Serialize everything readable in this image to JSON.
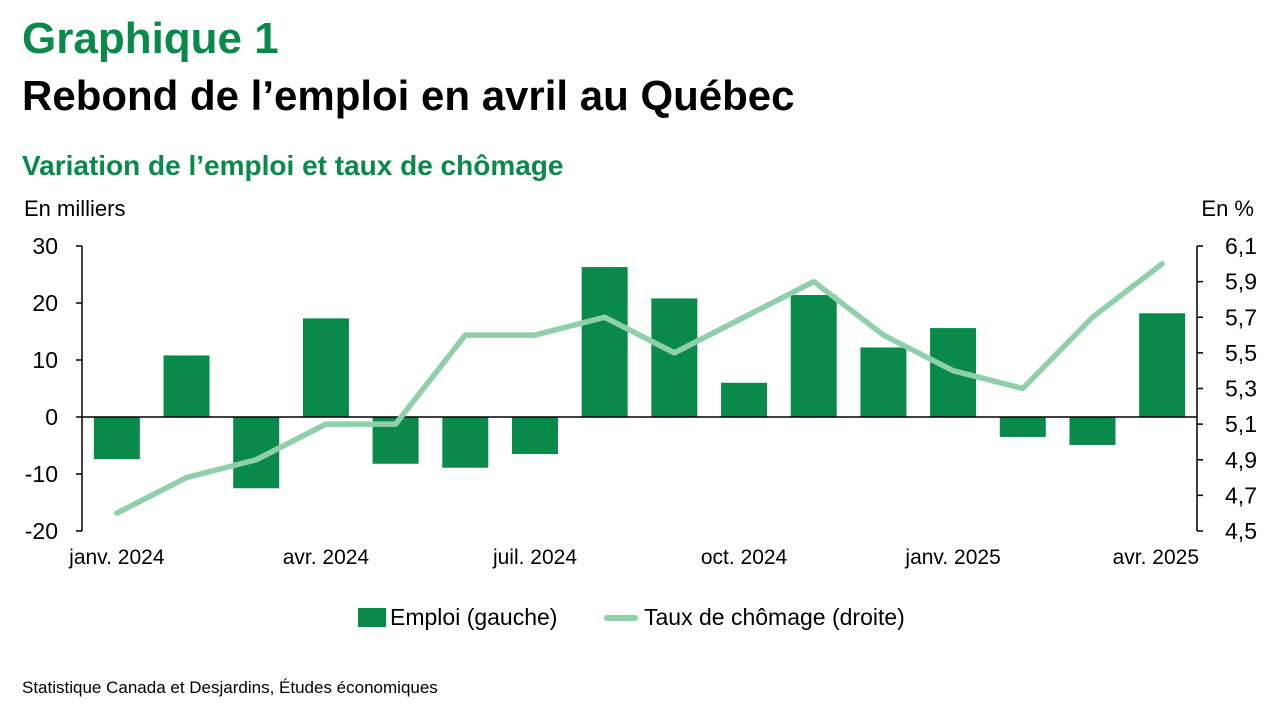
{
  "header": {
    "figure_label": "Graphique 1",
    "title": "Rebond de l’emploi en avril au Québec",
    "subtitle": "Variation de l’emploi et taux de chômage"
  },
  "source": "Statistique Canada et Desjardins, Études économiques",
  "colors": {
    "bar": "#0a8a4a",
    "line": "#8fd0ab",
    "accent": "#0a8a4a"
  },
  "chart_data": {
    "type": "bar",
    "left_axis_label": "En milliers",
    "right_axis_label": "En %",
    "x_tick_labels": [
      "janv. 2024",
      "avr. 2024",
      "juil. 2024",
      "oct. 2024",
      "janv. 2025",
      "avr. 2025"
    ],
    "x_tick_indices": [
      0,
      3,
      6,
      9,
      12,
      15
    ],
    "months": [
      "janv. 2024",
      "févr. 2024",
      "mars 2024",
      "avr. 2024",
      "mai 2024",
      "juin 2024",
      "juil. 2024",
      "août 2024",
      "sept. 2024",
      "oct. 2024",
      "nov. 2024",
      "déc. 2024",
      "janv. 2025",
      "févr. 2025",
      "mars 2025",
      "avr. 2025"
    ],
    "ylim_left": [
      -20,
      30
    ],
    "yticks_left": [
      -20,
      -10,
      0,
      10,
      20,
      30
    ],
    "ylim_right": [
      4.5,
      6.1
    ],
    "yticks_right": [
      "4,5",
      "4,7",
      "4,9",
      "5,1",
      "5,3",
      "5,5",
      "5,7",
      "5,9",
      "6,1"
    ],
    "series": [
      {
        "name": "Emploi (gauche)",
        "type": "bar",
        "axis": "left",
        "values": [
          -7.4,
          10.8,
          -12.5,
          17.3,
          -8.2,
          -8.9,
          -6.5,
          26.3,
          20.8,
          6.0,
          21.4,
          12.2,
          15.6,
          -3.5,
          -4.9,
          18.2
        ]
      },
      {
        "name": "Taux de chômage (droite)",
        "type": "line",
        "axis": "right",
        "values": [
          4.6,
          4.8,
          4.9,
          5.1,
          5.1,
          5.6,
          5.6,
          5.7,
          5.5,
          5.7,
          5.9,
          5.6,
          5.4,
          5.3,
          5.7,
          6.0
        ]
      }
    ],
    "grid": false,
    "legend_position": "bottom"
  }
}
